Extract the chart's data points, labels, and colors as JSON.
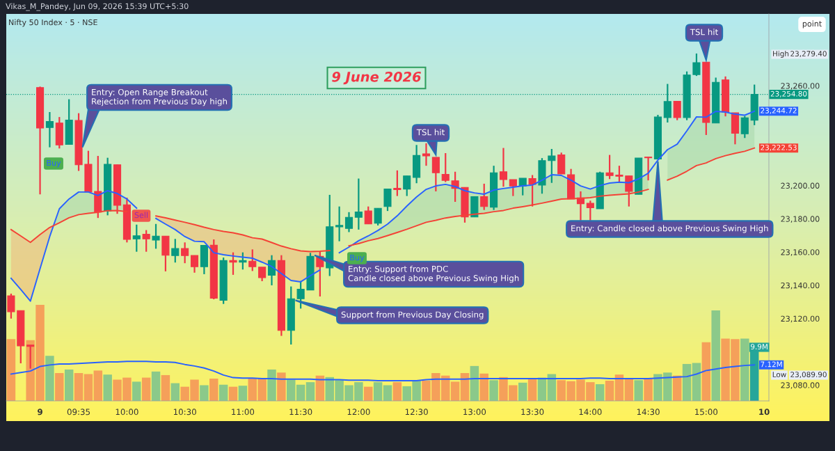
{
  "chart_data": {
    "type": "candlestick",
    "title": "9 June 2026",
    "subtitle": "Nifty 50 Index · 5 · NSE",
    "categories": [
      null,
      null,
      null,
      "9",
      null,
      null,
      null,
      "09:35",
      null,
      null,
      null,
      null,
      "10:00",
      null,
      null,
      null,
      null,
      null,
      "10:30",
      null,
      null,
      null,
      null,
      null,
      "11:00",
      null,
      null,
      null,
      null,
      null,
      "11:30",
      null,
      null,
      null,
      null,
      null,
      "12:00",
      null,
      null,
      null,
      null,
      null,
      "12:30",
      null,
      null,
      null,
      null,
      null,
      "13:00",
      null,
      null,
      null,
      null,
      null,
      "13:30",
      null,
      null,
      null,
      null,
      null,
      "14:00",
      null,
      null,
      null,
      null,
      null,
      "14:30",
      null,
      null,
      null,
      null,
      null,
      "15:00",
      null,
      null,
      null,
      null,
      null,
      "10"
    ],
    "ohlc": [
      [
        23133.7,
        23135.0,
        23120.0,
        23124.1
      ],
      [
        23124.8,
        23124.8,
        23093.1,
        23103.6
      ],
      [
        23104.1,
        23104.1,
        23089.9,
        23103.3
      ],
      [
        23258.9,
        23259.5,
        23194.7,
        23234.6
      ],
      [
        23234.9,
        23244.2,
        23223.0,
        23238.5
      ],
      [
        23237.6,
        23241.2,
        23222.3,
        23224.4
      ],
      [
        23224.7,
        23251.9,
        23224.7,
        23239.3
      ],
      [
        23239.1,
        23243.5,
        23208.8,
        23212.5
      ],
      [
        23212.8,
        23220.9,
        23196.1,
        23196.1
      ],
      [
        23196.5,
        23217.8,
        23180.5,
        23184.0
      ],
      [
        23184.7,
        23216.7,
        23182.1,
        23212.8
      ],
      [
        23212.5,
        23212.5,
        23183.0,
        23188.1
      ],
      [
        23188.4,
        23192.7,
        23165.8,
        23167.6
      ],
      [
        23167.9,
        23176.5,
        23160.2,
        23169.8
      ],
      [
        23170.7,
        23173.2,
        23160.2,
        23167.9
      ],
      [
        23167.2,
        23176.9,
        23162.0,
        23169.6
      ],
      [
        23169.6,
        23169.6,
        23148.4,
        23158.1
      ],
      [
        23157.9,
        23167.9,
        23153.7,
        23162.1
      ],
      [
        23162.1,
        23165.8,
        23153.3,
        23157.9
      ],
      [
        23157.9,
        23157.9,
        23147.6,
        23151.2
      ],
      [
        23151.2,
        23164.0,
        23146.7,
        23164.0
      ],
      [
        23164.1,
        23167.6,
        23131.6,
        23132.3
      ],
      [
        23131.0,
        23156.7,
        23128.8,
        23154.9
      ],
      [
        23154.9,
        23159.8,
        23146.3,
        23153.9
      ],
      [
        23153.9,
        23159.8,
        23149.5,
        23154.9
      ],
      [
        23154.5,
        23161.6,
        23148.6,
        23151.2
      ],
      [
        23150.9,
        23150.9,
        23142.5,
        23144.6
      ],
      [
        23146.1,
        23158.1,
        23140.0,
        23154.9
      ],
      [
        23154.9,
        23158.1,
        23109.6,
        23112.9
      ],
      [
        23112.9,
        23139.3,
        23104.4,
        23131.9
      ],
      [
        23131.9,
        23142.6,
        23126.0,
        23137.6
      ],
      [
        23137.2,
        23159.5,
        23137.2,
        23157.4
      ],
      [
        23157.4,
        23160.2,
        23133.3,
        23151.2
      ],
      [
        23150.5,
        23194.4,
        23145.6,
        23175.2
      ],
      [
        23175.2,
        23187.4,
        23166.5,
        23176.0
      ],
      [
        23174.2,
        23184.0,
        23172.0,
        23180.9
      ],
      [
        23180.9,
        23204.2,
        23173.5,
        23184.1
      ],
      [
        23184.7,
        23187.4,
        23176.9,
        23176.9
      ],
      [
        23177.4,
        23186.3,
        23176.0,
        23186.3
      ],
      [
        23187.4,
        23197.9,
        23184.7,
        23197.9
      ],
      [
        23198.3,
        23209.1,
        23193.7,
        23197.5
      ],
      [
        23197.9,
        23205.8,
        23193.7,
        23205.8
      ],
      [
        23204.9,
        23224.4,
        23201.4,
        23218.1
      ],
      [
        23219.1,
        23225.4,
        23211.9,
        23217.8
      ],
      [
        23217.0,
        23217.0,
        23196.5,
        23207.7
      ],
      [
        23206.7,
        23219.5,
        23202.1,
        23203.1
      ],
      [
        23202.8,
        23208.3,
        23190.2,
        23198.3
      ],
      [
        23198.9,
        23198.9,
        23177.7,
        23181.1
      ],
      [
        23181.1,
        23193.3,
        23181.1,
        23193.3
      ],
      [
        23193.3,
        23201.1,
        23185.3,
        23187.4
      ],
      [
        23187.0,
        23211.9,
        23185.3,
        23207.7
      ],
      [
        23208.3,
        23222.6,
        23199.3,
        23203.6
      ],
      [
        23203.6,
        23203.6,
        23193.7,
        23199.7
      ],
      [
        23199.7,
        23204.4,
        23194.1,
        23204.4
      ],
      [
        23204.2,
        23206.3,
        23187.4,
        23200.7
      ],
      [
        23200.3,
        23216.5,
        23195.1,
        23215.0
      ],
      [
        23215.0,
        23222.0,
        23201.6,
        23217.8
      ],
      [
        23218.4,
        23219.8,
        23207.0,
        23207.0
      ],
      [
        23206.5,
        23210.0,
        23191.9,
        23191.9
      ],
      [
        23192.6,
        23196.5,
        23179.0,
        23189.1
      ],
      [
        23189.3,
        23190.9,
        23179.0,
        23186.7
      ],
      [
        23186.0,
        23208.3,
        23186.0,
        23207.7
      ],
      [
        23207.7,
        23218.4,
        23203.9,
        23206.0
      ],
      [
        23206.3,
        23211.9,
        23201.6,
        23205.6
      ],
      [
        23205.8,
        23205.8,
        23187.4,
        23196.5
      ],
      [
        23194.7,
        23216.5,
        23194.7,
        23216.5
      ],
      [
        23217.1,
        23217.3,
        23203.1,
        23216.7
      ],
      [
        23216.0,
        23242.5,
        23216.0,
        23241.2
      ],
      [
        23240.9,
        23261.1,
        23237.9,
        23250.5
      ],
      [
        23250.6,
        23250.6,
        23239.3,
        23240.9
      ],
      [
        23240.9,
        23268.6,
        23239.3,
        23266.5
      ],
      [
        23266.7,
        23279.4,
        23265.9,
        23273.9
      ],
      [
        23274.2,
        23274.2,
        23230.4,
        23237.9
      ],
      [
        23237.6,
        23264.9,
        23237.6,
        23262.1
      ],
      [
        23263.5,
        23265.6,
        23241.6,
        23244.2
      ],
      [
        23243.7,
        23243.7,
        23224.8,
        23231.4
      ],
      [
        23231.1,
        23241.8,
        23228.6,
        23240.7
      ],
      [
        23239.3,
        23260.7,
        23236.3,
        23254.8
      ],
      null
    ],
    "colors": [
      "#f23645",
      "#f23645",
      "#f23645",
      "#f23645",
      "#089981",
      "#f23645",
      "#089981",
      "#f23645",
      "#f23645",
      "#f23645",
      "#089981",
      "#f23645",
      "#f23645",
      "#089981",
      "#f23645",
      "#089981",
      "#f23645",
      "#089981",
      "#f23645",
      "#f23645",
      "#089981",
      "#f23645",
      "#089981",
      "#f23645",
      "#089981",
      "#f23645",
      "#f23645",
      "#089981",
      "#f23645",
      "#089981",
      "#089981",
      "#089981",
      "#f23645",
      "#089981",
      "#089981",
      "#089981",
      "#089981",
      "#f23645",
      "#089981",
      "#089981",
      "#f23645",
      "#089981",
      "#089981",
      "#f23645",
      "#f23645",
      "#f23645",
      "#f23645",
      "#f23645",
      "#089981",
      "#f23645",
      "#089981",
      "#f23645",
      "#f23645",
      "#089981",
      "#f23645",
      "#089981",
      "#089981",
      "#f23645",
      "#f23645",
      "#f23645",
      "#f23645",
      "#089981",
      "#f23645",
      "#f23645",
      "#f23645",
      "#089981",
      "#f23645",
      "#089981",
      "#089981",
      "#f23645",
      "#089981",
      "#089981",
      "#f23645",
      "#089981",
      "#f23645",
      "#f23645",
      "#089981",
      "#089981",
      null
    ],
    "series": [
      {
        "type": "line",
        "color": "#2962ff",
        "values": [
          23144.2,
          23137.5,
          23130.5,
          23150.0,
          23169.3,
          23186.0,
          23191.9,
          23196.1,
          23196.1,
          23194.0,
          23196.9,
          23195.2,
          23191.9,
          23186.4,
          null,
          23180.2,
          23176.8,
          23173.5,
          23169.3,
          23166.5,
          23166.2,
          23159.6,
          23158.4,
          23157.6,
          23156.9,
          23156.3,
          23153.9,
          23151.3,
          23147.1,
          23142.9,
          23142.1,
          23145.8,
          23149.2,
          null,
          23159.6,
          23163.0,
          23166.8,
          23169.7,
          23173.0,
          23176.8,
          23181.8,
          23187.7,
          23193.1,
          23197.7,
          23199.8,
          23200.7,
          23199.4,
          23196.9,
          23195.6,
          23194.8,
          23197.3,
          23198.2,
          23199.0,
          23199.8,
          23200.3,
          23203.2,
          23206.5,
          23206.1,
          23203.2,
          23199.8,
          23197.9,
          23200.0,
          23201.5,
          23202.0,
          23201.7,
          23204.0,
          23207.4,
          23215.3,
          23221.6,
          23224.9,
          23232.9,
          23241.3,
          23241.1,
          23244.6,
          23244.2,
          23242.9,
          23242.3,
          23244.72,
          null
        ],
        "value_labels": [
          null,
          null,
          null,
          null,
          null,
          null,
          null,
          null,
          null,
          null,
          null,
          null,
          null,
          null,
          null,
          null,
          null,
          null,
          null,
          null,
          null,
          null,
          null,
          null,
          null,
          null,
          null,
          null,
          null,
          null,
          null,
          null,
          null,
          null,
          null,
          null,
          null,
          null,
          null,
          null,
          null,
          null,
          null,
          null,
          null,
          null,
          null,
          null,
          null,
          null,
          null,
          null,
          null,
          null,
          null,
          null,
          null,
          null,
          null,
          null,
          null,
          null,
          null,
          null,
          null,
          null,
          null,
          null,
          null,
          null,
          null,
          null,
          null,
          null,
          null,
          null,
          null,
          "23,244.72",
          null
        ]
      },
      {
        "type": "line",
        "color": "#f44336",
        "values": [
          23173.5,
          23169.7,
          23165.8,
          23170.5,
          23174.8,
          23177.6,
          23180.6,
          23182.5,
          23183.3,
          23183.9,
          23184.9,
          23185.0,
          23184.3,
          null,
          null,
          23181.7,
          23180.6,
          23179.2,
          23177.9,
          23176.5,
          23174.9,
          23173.5,
          23172.4,
          23171.6,
          23170.3,
          23168.6,
          23167.8,
          23165.7,
          23163.6,
          23162.0,
          23160.7,
          23160.3,
          23160.5,
          23160.9,
          null,
          23163.8,
          23165.1,
          23166.8,
          23168.1,
          23169.9,
          23171.8,
          23173.7,
          23175.8,
          23177.9,
          23179.1,
          23180.5,
          23181.4,
          23182.1,
          23182.8,
          23183.3,
          23184.3,
          23185.0,
          23186.4,
          23187.3,
          23188.3,
          23189.4,
          23190.6,
          23191.9,
          23192.1,
          23192.3,
          23192.7,
          23193.6,
          23194.2,
          23194.6,
          23195.0,
          23196.1,
          23197.7,
          null,
          23203.3,
          23205.6,
          23208.6,
          23212.0,
          23213.6,
          23216.2,
          23218.0,
          23219.4,
          23220.6,
          23222.53,
          null
        ],
        "value_labels": [
          null,
          null,
          null,
          null,
          null,
          null,
          null,
          null,
          null,
          null,
          null,
          null,
          null,
          null,
          null,
          null,
          null,
          null,
          null,
          null,
          null,
          null,
          null,
          null,
          null,
          null,
          null,
          null,
          null,
          null,
          null,
          null,
          null,
          null,
          null,
          null,
          null,
          null,
          null,
          null,
          null,
          null,
          null,
          null,
          null,
          null,
          null,
          null,
          null,
          null,
          null,
          null,
          null,
          null,
          null,
          null,
          null,
          null,
          null,
          null,
          null,
          null,
          null,
          null,
          null,
          null,
          null,
          null,
          null,
          null,
          null,
          null,
          null,
          null,
          null,
          null,
          null,
          "23,222.53",
          null
        ]
      },
      {
        "type": "bar",
        "axis": "y2",
        "colors": [
          "#f5a05a",
          "#f5a05a",
          "#f5a05a",
          "#f5a05a",
          "#8bc98a",
          "#f5a05a",
          "#8bc98a",
          "#f5a05a",
          "#f5a05a",
          "#f5a05a",
          "#8bc98a",
          "#f5a05a",
          "#f5a05a",
          "#8bc98a",
          "#f5a05a",
          "#8bc98a",
          "#f5a05a",
          "#8bc98a",
          "#f5a05a",
          "#f5a05a",
          "#8bc98a",
          "#f5a05a",
          "#8bc98a",
          "#f5a05a",
          "#8bc98a",
          "#f5a05a",
          "#f5a05a",
          "#8bc98a",
          "#f5a05a",
          "#8bc98a",
          "#8bc98a",
          "#8bc98a",
          "#f5a05a",
          "#8bc98a",
          "#8bc98a",
          "#8bc98a",
          "#8bc98a",
          "#f5a05a",
          "#8bc98a",
          "#8bc98a",
          "#f5a05a",
          "#8bc98a",
          "#8bc98a",
          "#f5a05a",
          "#f5a05a",
          "#f5a05a",
          "#f5a05a",
          "#f5a05a",
          "#8bc98a",
          "#f5a05a",
          "#8bc98a",
          "#f5a05a",
          "#f5a05a",
          "#8bc98a",
          "#f5a05a",
          "#8bc98a",
          "#8bc98a",
          "#f5a05a",
          "#f5a05a",
          "#f5a05a",
          "#f5a05a",
          "#8bc98a",
          "#f5a05a",
          "#f5a05a",
          "#f5a05a",
          "#8bc98a",
          "#f5a05a",
          "#8bc98a",
          "#8bc98a",
          "#f5a05a",
          "#8bc98a",
          "#8bc98a",
          "#f5a05a",
          "#8bc98a",
          "#f5a05a",
          "#f5a05a",
          "#8bc98a",
          "#26a69a",
          null
        ],
        "values": [
          12.2,
          null,
          12.0,
          19.0,
          8.9,
          5.5,
          6.2,
          5.5,
          5.3,
          6.0,
          5.2,
          4.2,
          4.6,
          3.8,
          4.6,
          5.8,
          5.1,
          3.5,
          2.8,
          4.2,
          3.1,
          4.4,
          3.2,
          2.8,
          3.0,
          4.4,
          4.4,
          6.2,
          5.6,
          4.2,
          3.2,
          3.7,
          5.0,
          4.7,
          4.1,
          3.1,
          3.7,
          2.8,
          3.7,
          3.1,
          3.7,
          2.9,
          4.0,
          4.0,
          5.5,
          5.0,
          3.8,
          5.5,
          6.9,
          5.4,
          4.1,
          4.7,
          3.1,
          3.6,
          4.3,
          4.6,
          5.3,
          4.1,
          3.9,
          4.2,
          3.7,
          3.3,
          4.0,
          5.2,
          4.3,
          4.1,
          4.5,
          5.3,
          5.6,
          5.0,
          7.3,
          7.5,
          11.6,
          17.9,
          12.3,
          12.2,
          12.3,
          9.9,
          null
        ],
        "value_labels": [
          null,
          null,
          null,
          null,
          null,
          null,
          null,
          null,
          null,
          null,
          null,
          null,
          null,
          null,
          null,
          null,
          null,
          null,
          null,
          null,
          null,
          null,
          null,
          null,
          null,
          null,
          null,
          null,
          null,
          null,
          null,
          null,
          null,
          null,
          null,
          null,
          null,
          null,
          null,
          null,
          null,
          null,
          null,
          null,
          null,
          null,
          null,
          null,
          null,
          null,
          null,
          null,
          null,
          null,
          null,
          null,
          null,
          null,
          null,
          null,
          null,
          null,
          null,
          null,
          null,
          null,
          null,
          null,
          null,
          null,
          null,
          null,
          null,
          null,
          null,
          null,
          null,
          "9.9M",
          null
        ]
      },
      {
        "type": "line",
        "axis": "y2",
        "color": "#2962ff",
        "values": [
          5.3,
          5.6,
          5.9,
          6.8,
          7.1,
          7.3,
          7.3,
          7.4,
          7.5,
          7.6,
          7.7,
          7.7,
          7.8,
          7.8,
          7.8,
          7.7,
          7.7,
          7.6,
          7.2,
          6.9,
          6.5,
          5.9,
          5.1,
          4.6,
          4.5,
          4.5,
          4.4,
          4.4,
          4.3,
          4.3,
          4.3,
          4.3,
          4.2,
          4.2,
          4.2,
          4.1,
          4.1,
          4.1,
          4.0,
          4.0,
          4.0,
          4.0,
          4.0,
          4.2,
          4.3,
          4.3,
          4.3,
          4.3,
          4.4,
          4.4,
          4.4,
          4.4,
          4.4,
          4.4,
          4.4,
          4.4,
          4.4,
          4.4,
          4.4,
          4.4,
          4.5,
          4.5,
          4.4,
          4.4,
          4.4,
          4.4,
          4.4,
          4.5,
          4.6,
          4.7,
          4.8,
          5.3,
          6.0,
          6.3,
          6.6,
          6.8,
          7.0,
          7.12,
          null
        ],
        "value_labels": [
          null,
          null,
          null,
          null,
          null,
          null,
          null,
          null,
          null,
          null,
          null,
          null,
          null,
          null,
          null,
          null,
          null,
          null,
          null,
          null,
          null,
          null,
          null,
          null,
          null,
          null,
          null,
          null,
          null,
          null,
          null,
          null,
          null,
          null,
          null,
          null,
          null,
          null,
          null,
          null,
          null,
          null,
          null,
          null,
          null,
          null,
          null,
          null,
          null,
          null,
          null,
          null,
          null,
          null,
          null,
          null,
          null,
          null,
          null,
          null,
          null,
          null,
          null,
          null,
          null,
          null,
          null,
          null,
          null,
          null,
          null,
          null,
          null,
          null,
          null,
          null,
          null,
          "7.12M",
          null
        ]
      }
    ],
    "ylim": [
      23070.5,
      23303.2
    ],
    "yticks": [
      {
        "value": 23080,
        "label": "23,080.00"
      },
      {
        "value": 23120,
        "label": "23,120.00"
      },
      {
        "value": 23140,
        "label": "23,140.00"
      },
      {
        "value": 23160,
        "label": "23,160.00"
      },
      {
        "value": 23180,
        "label": "23,180.00"
      },
      {
        "value": 23200,
        "label": "23,200.00"
      },
      {
        "value": 23260,
        "label": "23,260.00"
      }
    ],
    "y2lim": [
      0,
      76.5
    ],
    "ref_lines": [
      {
        "axis": "y",
        "value": 23254.8,
        "label": "23,254.80",
        "color": "#089981",
        "line_style": "dotted"
      }
    ],
    "annotations": [
      "Vikas_M_Pandey, Jun 09, 2026 15:39 UTC+5:30",
      "point",
      "Entry: Open Range Breakout\nRejection from Previous Day high",
      "TSL hit",
      "Entry: Support from PDC\nCandle closed above Previous Swing High",
      "Support from Previous Day Closing",
      "Entry: Candle closed above Previous Swing High",
      "TSL hit",
      "Buy",
      "Sell",
      "Buy",
      "High",
      "23,279.40",
      "Low",
      "23,089.90"
    ]
  }
}
